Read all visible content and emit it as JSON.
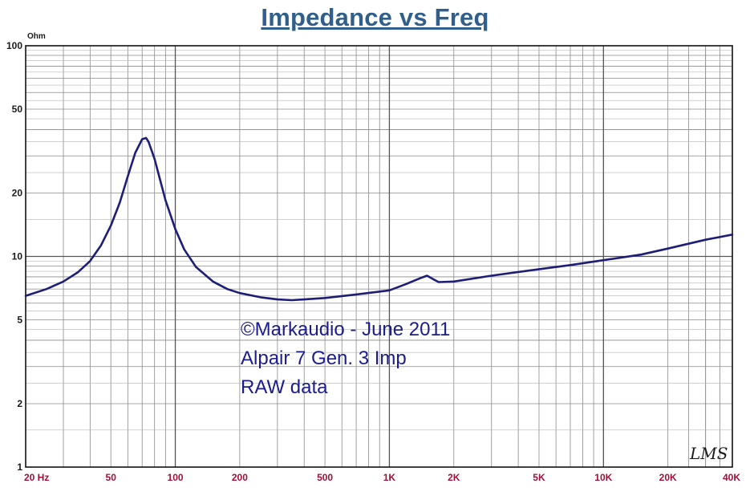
{
  "chart_data": {
    "type": "line",
    "title": "Impedance vs Freq",
    "y_unit": "Ohm",
    "x_scale": "log",
    "y_scale": "log",
    "xlim": [
      20,
      40000
    ],
    "ylim": [
      1,
      100
    ],
    "grid": true,
    "x_ticks": [
      {
        "value": 20,
        "label": "20 Hz"
      },
      {
        "value": 50,
        "label": "50"
      },
      {
        "value": 100,
        "label": "100"
      },
      {
        "value": 200,
        "label": "200"
      },
      {
        "value": 500,
        "label": "500"
      },
      {
        "value": 1000,
        "label": "1K"
      },
      {
        "value": 2000,
        "label": "2K"
      },
      {
        "value": 5000,
        "label": "5K"
      },
      {
        "value": 10000,
        "label": "10K"
      },
      {
        "value": 20000,
        "label": "20K"
      },
      {
        "value": 40000,
        "label": "40K"
      }
    ],
    "y_ticks": [
      {
        "value": 100,
        "label": "100"
      },
      {
        "value": 50,
        "label": "50"
      },
      {
        "value": 20,
        "label": "20"
      },
      {
        "value": 10,
        "label": "10"
      },
      {
        "value": 5,
        "label": "5"
      },
      {
        "value": 2,
        "label": "2"
      },
      {
        "value": 1,
        "label": "1"
      }
    ],
    "series": [
      {
        "color": "#1e1e78",
        "x": [
          20,
          25,
          30,
          35,
          40,
          45,
          50,
          55,
          60,
          65,
          70,
          73,
          75,
          80,
          85,
          90,
          100,
          110,
          125,
          150,
          175,
          200,
          250,
          300,
          350,
          400,
          500,
          700,
          1000,
          1200,
          1400,
          1500,
          1600,
          1700,
          2000,
          3000,
          5000,
          7000,
          10000,
          15000,
          20000,
          30000,
          40000
        ],
        "y": [
          6.5,
          7.0,
          7.6,
          8.4,
          9.5,
          11.3,
          14.0,
          18.0,
          24.0,
          31.0,
          36.0,
          36.5,
          35.0,
          29.0,
          23.0,
          18.5,
          13.5,
          10.8,
          8.9,
          7.6,
          7.0,
          6.7,
          6.4,
          6.25,
          6.2,
          6.25,
          6.35,
          6.6,
          6.9,
          7.4,
          7.9,
          8.1,
          7.8,
          7.55,
          7.6,
          8.1,
          8.7,
          9.1,
          9.6,
          10.2,
          10.9,
          12.0,
          12.7
        ]
      }
    ],
    "annotations": [
      "©Markaudio - June 2011",
      "Alpair 7 Gen. 3 Imp",
      "RAW data"
    ]
  },
  "signature": "LMS"
}
